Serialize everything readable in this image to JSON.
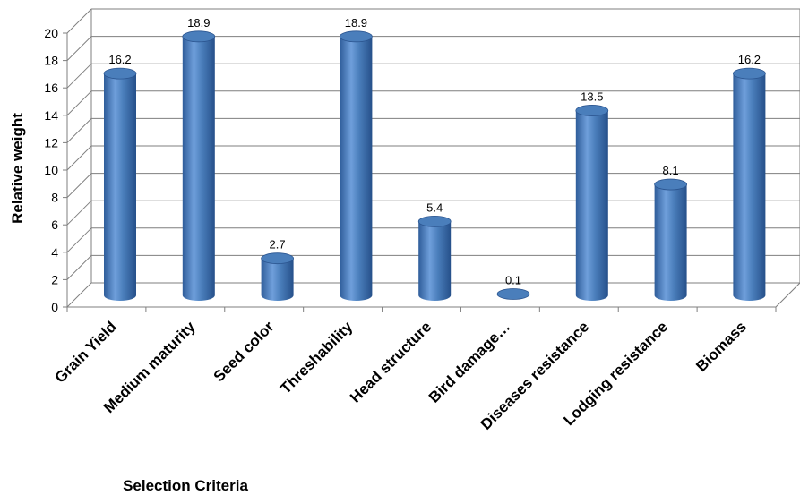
{
  "chart_data": {
    "type": "bar",
    "categories": [
      "Grain Yield",
      "Medium maturity",
      "Seed color",
      "Threshability",
      "Head structure",
      "Bird damage…",
      "Diseases resistance",
      "Lodging resistance",
      "Biomass"
    ],
    "values": [
      16.2,
      18.9,
      2.7,
      18.9,
      5.4,
      0.1,
      13.5,
      8.1,
      16.2
    ],
    "data_labels": [
      "16.2",
      "18.9",
      "2.7",
      "18.9",
      "5.4",
      "0.1",
      "13.5",
      "8.1",
      "16.2"
    ],
    "y_ticks": [
      "0",
      "2",
      "4",
      "6",
      "8",
      "10",
      "12",
      "14",
      "16",
      "18",
      "20"
    ],
    "xlabel": "Selection Criteria",
    "ylabel": "Relative weight",
    "ylim": [
      0,
      20
    ],
    "style": "3d-cylinder",
    "grid": true,
    "legend": "none",
    "colors": {
      "bar": "#4a7ebb",
      "bar_dark": "#2b5590",
      "bar_light": "#7aa6dc",
      "grid": "#7f7f7f"
    }
  }
}
